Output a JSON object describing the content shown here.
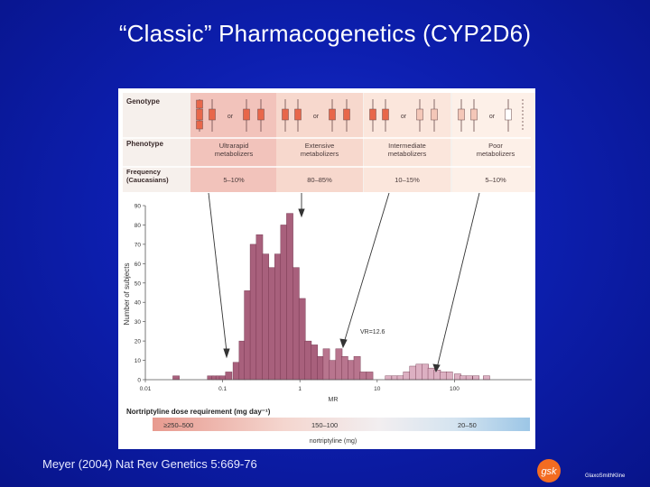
{
  "slide": {
    "title": "“Classic” Pharmacogenetics (CYP2D6)",
    "citation": "Meyer (2004) Nat Rev Genetics 5:669-76",
    "logo_mark": "gsk",
    "logo_name": "GlaxoSmithKline"
  },
  "table": {
    "labels": {
      "genotype": "Genotype",
      "phenotype": "Phenotype",
      "frequency": "Frequency",
      "frequency_sub": "(Caucasians)",
      "or": "or"
    },
    "columns": [
      {
        "phenotype": [
          "Ultrarapid",
          "metabolizers"
        ],
        "frequency": "5–10%",
        "color": "#f2c3bb"
      },
      {
        "phenotype": [
          "Extensive",
          "metabolizers"
        ],
        "frequency": "80–85%",
        "color": "#f7d8cd"
      },
      {
        "phenotype": [
          "Intermediate",
          "metabolizers"
        ],
        "frequency": "10–15%",
        "color": "#fbe6dc"
      },
      {
        "phenotype": [
          "Poor",
          "metabolizers"
        ],
        "frequency": "5–10%",
        "color": "#fdf0e8"
      }
    ]
  },
  "chart_data": {
    "type": "bar",
    "ylabel": "Number of subjects",
    "xlabel": "MR",
    "x_scale": "log",
    "xlim": [
      0.01,
      1000
    ],
    "ylim": [
      0,
      90
    ],
    "x_ticks": [
      "0.01",
      "0.1",
      "1",
      "10",
      "100"
    ],
    "y_ticks": [
      "0",
      "10",
      "20",
      "30",
      "40",
      "50",
      "60",
      "70",
      "80",
      "90"
    ],
    "annotation": "VR=12.6",
    "bars": [
      {
        "x": 0.025,
        "y": 2,
        "group": "um"
      },
      {
        "x": 0.07,
        "y": 2,
        "group": "um"
      },
      {
        "x": 0.08,
        "y": 2,
        "group": "um"
      },
      {
        "x": 0.09,
        "y": 2,
        "group": "um"
      },
      {
        "x": 0.1,
        "y": 2,
        "group": "um"
      },
      {
        "x": 0.12,
        "y": 4,
        "group": "um"
      },
      {
        "x": 0.15,
        "y": 9,
        "group": "em"
      },
      {
        "x": 0.18,
        "y": 20,
        "group": "em"
      },
      {
        "x": 0.21,
        "y": 46,
        "group": "em"
      },
      {
        "x": 0.25,
        "y": 70,
        "group": "em"
      },
      {
        "x": 0.3,
        "y": 75,
        "group": "em"
      },
      {
        "x": 0.36,
        "y": 65,
        "group": "em"
      },
      {
        "x": 0.43,
        "y": 58,
        "group": "em"
      },
      {
        "x": 0.52,
        "y": 65,
        "group": "em"
      },
      {
        "x": 0.62,
        "y": 80,
        "group": "em"
      },
      {
        "x": 0.74,
        "y": 86,
        "group": "em"
      },
      {
        "x": 0.89,
        "y": 58,
        "group": "em"
      },
      {
        "x": 1.07,
        "y": 42,
        "group": "em"
      },
      {
        "x": 1.28,
        "y": 20,
        "group": "em"
      },
      {
        "x": 1.54,
        "y": 18,
        "group": "em"
      },
      {
        "x": 1.85,
        "y": 12,
        "group": "em"
      },
      {
        "x": 2.2,
        "y": 16,
        "group": "im"
      },
      {
        "x": 2.65,
        "y": 10,
        "group": "im"
      },
      {
        "x": 3.2,
        "y": 16,
        "group": "im"
      },
      {
        "x": 3.8,
        "y": 12,
        "group": "im"
      },
      {
        "x": 4.6,
        "y": 10,
        "group": "im"
      },
      {
        "x": 5.5,
        "y": 12,
        "group": "im"
      },
      {
        "x": 6.6,
        "y": 4,
        "group": "im"
      },
      {
        "x": 8.0,
        "y": 4,
        "group": "im"
      },
      {
        "x": 14,
        "y": 2,
        "group": "pm"
      },
      {
        "x": 17,
        "y": 2,
        "group": "pm"
      },
      {
        "x": 20,
        "y": 2,
        "group": "pm"
      },
      {
        "x": 24,
        "y": 4,
        "group": "pm"
      },
      {
        "x": 29,
        "y": 7,
        "group": "pm"
      },
      {
        "x": 35,
        "y": 8,
        "group": "pm"
      },
      {
        "x": 42,
        "y": 8,
        "group": "pm"
      },
      {
        "x": 50,
        "y": 6,
        "group": "pm"
      },
      {
        "x": 60,
        "y": 5,
        "group": "pm"
      },
      {
        "x": 72,
        "y": 4,
        "group": "pm"
      },
      {
        "x": 86,
        "y": 4,
        "group": "pm"
      },
      {
        "x": 110,
        "y": 3,
        "group": "pm"
      },
      {
        "x": 130,
        "y": 2,
        "group": "pm"
      },
      {
        "x": 155,
        "y": 2,
        "group": "pm"
      },
      {
        "x": 190,
        "y": 2,
        "group": "pm"
      },
      {
        "x": 260,
        "y": 2,
        "group": "pm"
      }
    ],
    "group_colors": {
      "um": "#a8607c",
      "em": "#a8607c",
      "im": "#b8758e",
      "pm": "#dcb0c2"
    }
  },
  "dose": {
    "label": "Nortriptyline dose requirement (mg day⁻¹)",
    "segments": [
      "≥250–500",
      "150–100",
      "20–50"
    ],
    "unit": "nortriptyline (mg)"
  }
}
